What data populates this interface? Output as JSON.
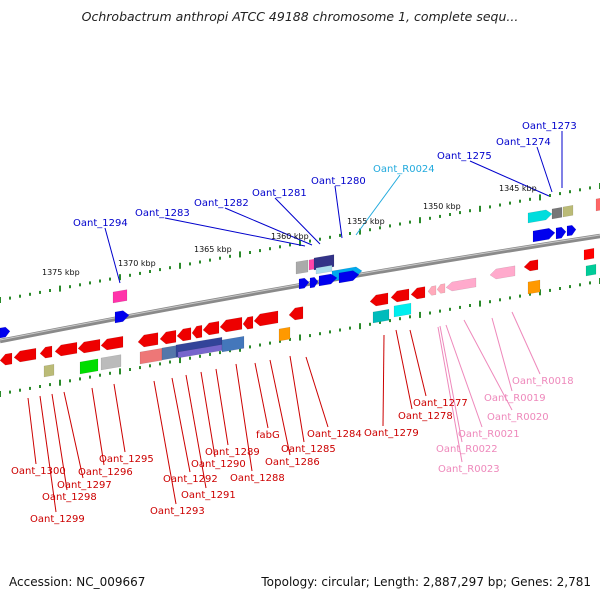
{
  "title": "Ochrobactrum anthropi ATCC 49188 chromosome 1, complete sequ...",
  "footer": {
    "accession": "Accession: NC_009667",
    "summary": "Topology: circular; Length: 2,887,297 bp; Genes: 2,781"
  },
  "colors": {
    "forward_label": "#0000cc",
    "reverse_label": "#cc0000",
    "rna_forward_label": "#22aadd",
    "rna_reverse_label": "#ee88bb",
    "backbone": "#8a8a8a",
    "tick": "#2a8a2a"
  },
  "scale_labels": [
    "1375 kbp",
    "1370 kbp",
    "1365 kbp",
    "1360 kbp",
    "1355 kbp",
    "1350 kbp",
    "1345 kbp"
  ],
  "forward_gene_labels": [
    "Oant_1273",
    "Oant_1274",
    "Oant_1275",
    "Oant_1280",
    "Oant_1281",
    "Oant_1282",
    "Oant_1283",
    "Oant_1294"
  ],
  "forward_rna_labels": [
    "Oant_R0024"
  ],
  "reverse_gene_labels": [
    "Oant_1277",
    "Oant_1278",
    "Oant_1279",
    "Oant_1284",
    "Oant_1285",
    "fabG",
    "Oant_1286",
    "Oant_1288",
    "Oant_1289",
    "Oant_1290",
    "Oant_1291",
    "Oant_1292",
    "Oant_1293",
    "Oant_1295",
    "Oant_1296",
    "Oant_1297",
    "Oant_1298",
    "Oant_1299",
    "Oant_1300"
  ],
  "reverse_rna_labels": [
    "Oant_R0018",
    "Oant_R0019",
    "Oant_R0020",
    "Oant_R0021",
    "Oant_R0022",
    "Oant_R0023"
  ]
}
